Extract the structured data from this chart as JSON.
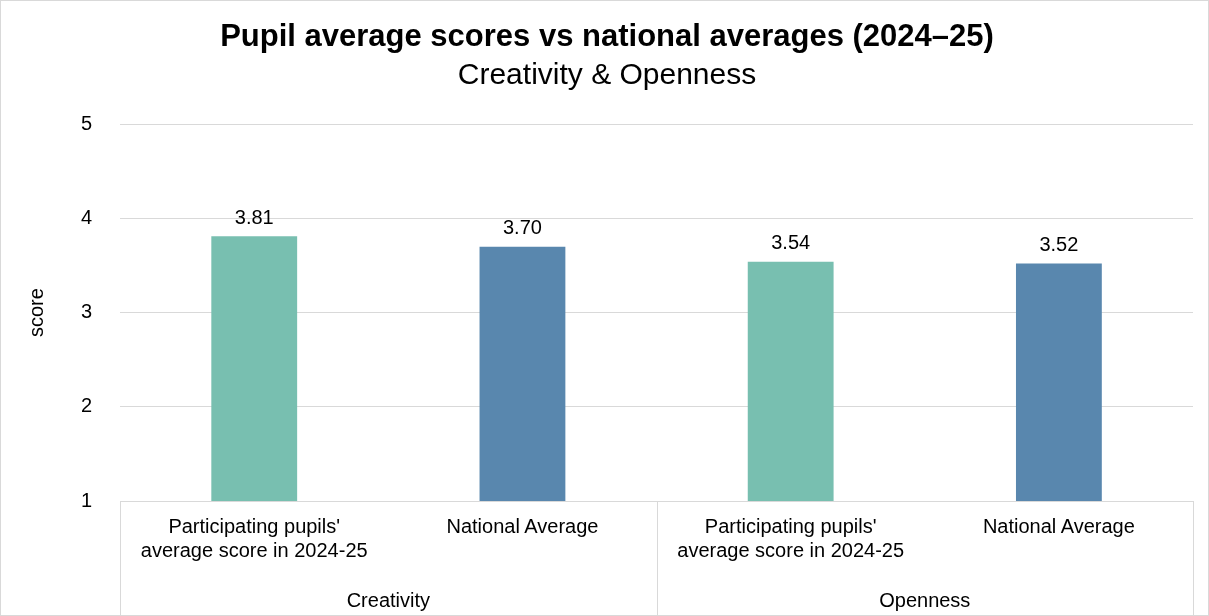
{
  "chart_data": {
    "type": "bar",
    "title": "Pupil average scores vs national averages (2024–25)",
    "subtitle": "Creativity & Openness",
    "ylabel": "score",
    "categories": [
      "Participating pupils' average score in 2024-25",
      "National Average",
      "Participating pupils' average score in 2024-25",
      "National Average"
    ],
    "values": [
      3.81,
      3.7,
      3.54,
      3.52
    ],
    "colors": [
      "#78bfb0",
      "#5987ae",
      "#78bfb0",
      "#5987ae"
    ],
    "value_labels": [
      "3.81",
      "3.70",
      "3.54",
      "3.52"
    ],
    "annotations": [
      "Creativity",
      "Openness"
    ],
    "ylim": [
      1,
      5
    ],
    "yticks": [
      1,
      2,
      3,
      4,
      5
    ],
    "grid": "y",
    "legend": false
  }
}
